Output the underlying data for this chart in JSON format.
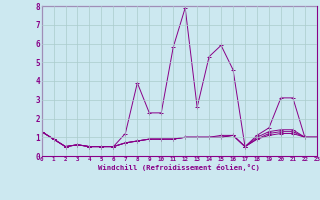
{
  "xlabel": "Windchill (Refroidissement éolien,°C)",
  "background_color": "#cce8f0",
  "grid_color": "#aacccc",
  "line_color": "#880088",
  "x_values": [
    0,
    1,
    2,
    3,
    4,
    5,
    6,
    7,
    8,
    9,
    10,
    11,
    12,
    13,
    14,
    15,
    16,
    17,
    18,
    19,
    20,
    21,
    22,
    23
  ],
  "y_main": [
    1.3,
    0.9,
    0.5,
    0.6,
    0.5,
    0.5,
    0.5,
    1.2,
    3.9,
    2.3,
    2.3,
    5.8,
    7.9,
    2.6,
    5.3,
    5.9,
    4.6,
    0.5,
    1.1,
    1.5,
    3.1,
    3.1,
    1.0,
    1.0
  ],
  "y_line2": [
    1.3,
    0.9,
    0.5,
    0.6,
    0.5,
    0.5,
    0.5,
    0.7,
    0.8,
    0.9,
    0.9,
    0.9,
    1.0,
    1.0,
    1.0,
    1.1,
    1.1,
    0.5,
    1.0,
    1.3,
    1.4,
    1.4,
    1.0,
    1.0
  ],
  "y_line3": [
    1.3,
    0.9,
    0.5,
    0.6,
    0.5,
    0.5,
    0.5,
    0.7,
    0.8,
    0.9,
    0.9,
    0.9,
    1.0,
    1.0,
    1.0,
    1.0,
    1.1,
    0.5,
    0.9,
    1.2,
    1.3,
    1.3,
    1.0,
    1.0
  ],
  "y_line4": [
    1.3,
    0.9,
    0.5,
    0.6,
    0.5,
    0.5,
    0.5,
    0.7,
    0.8,
    0.9,
    0.9,
    0.9,
    1.0,
    1.0,
    1.0,
    1.0,
    1.1,
    0.5,
    0.9,
    1.1,
    1.2,
    1.2,
    1.0,
    1.0
  ],
  "ylim": [
    0,
    8
  ],
  "xlim": [
    0,
    23
  ]
}
